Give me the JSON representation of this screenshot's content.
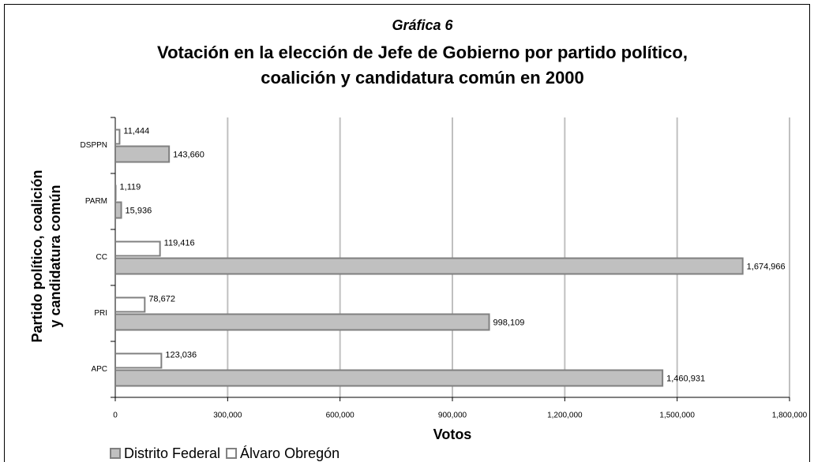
{
  "chart_data": {
    "type": "bar",
    "orientation": "horizontal",
    "subtitle": "Gráfica 6",
    "title": [
      "Votación en la elección de Jefe de Gobierno por partido político,",
      "coalición y candidatura común en 2000"
    ],
    "xlabel": "Votos",
    "ylabel": [
      "Partido político, coalición",
      "y candidatura común"
    ],
    "categories": [
      "DSPPN",
      "PARM",
      "CC",
      "PRI",
      "APC"
    ],
    "series": [
      {
        "name": "Distrito Federal",
        "color": "#c0c0c0",
        "values": [
          143660,
          15936,
          1674966,
          998109,
          1460931
        ],
        "value_labels": [
          "143,660",
          "15,936",
          "1,674,966",
          "998,109",
          "1,460,931"
        ]
      },
      {
        "name": "Álvaro Obregón",
        "color": "#ffffff",
        "values": [
          11444,
          1119,
          119416,
          78672,
          123036
        ],
        "value_labels": [
          "11,444",
          "1,119",
          "119,416",
          "78,672",
          "123,036"
        ]
      }
    ],
    "xlim": [
      0,
      1800000
    ],
    "xticks": [
      0,
      {
        "value": 300000,
        "label": "300,000"
      },
      {
        "value": 600000,
        "label": "600,000"
      },
      {
        "value": 900000,
        "label": "900,000"
      },
      {
        "value": 1200000,
        "label": "1,200,000"
      },
      {
        "value": 1500000,
        "label": "1,500,000"
      },
      {
        "value": 1800000,
        "label": "1,800,000"
      }
    ],
    "grid": true,
    "legend": "bottom-left"
  }
}
